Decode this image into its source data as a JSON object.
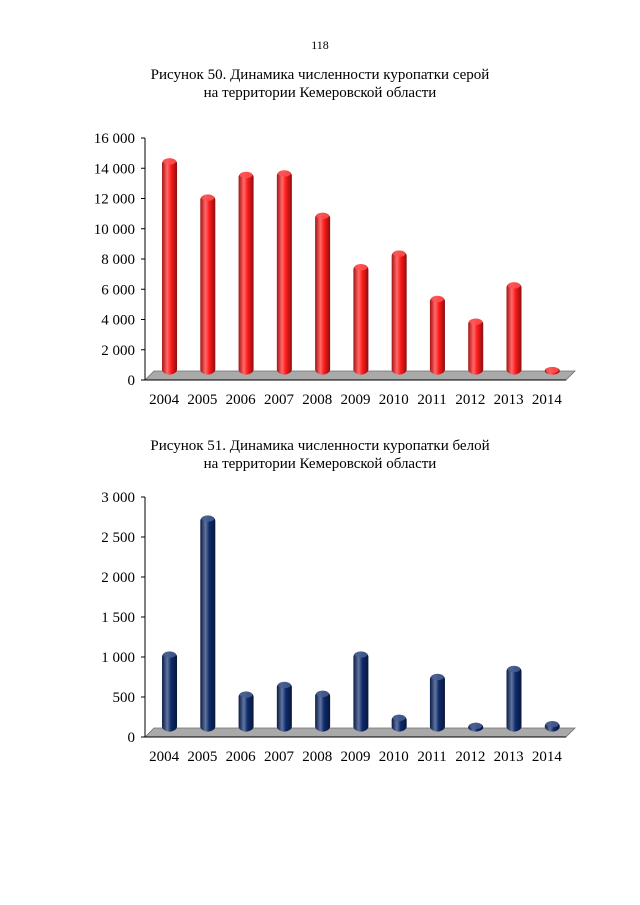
{
  "page_number": "118",
  "figures": [
    {
      "caption_line1": "Рисунок 50. Динамика численности куропатки серой",
      "caption_line2": "на территории Кемеровской области"
    },
    {
      "caption_line1": "Рисунок 51. Динамика численности куропатки белой",
      "caption_line2": "на территории Кемеровской области"
    }
  ],
  "chart_data": [
    {
      "type": "bar",
      "title": "Рисунок 50. Динамика численности куропатки серой на территории Кемеровской области",
      "categories": [
        "2004",
        "2005",
        "2006",
        "2007",
        "2008",
        "2009",
        "2010",
        "2011",
        "2012",
        "2013",
        "2014"
      ],
      "values": [
        14300,
        11900,
        13400,
        13500,
        10700,
        7300,
        8200,
        5200,
        3700,
        6100,
        500
      ],
      "ylim": [
        0,
        16000
      ],
      "yticks": [
        0,
        2000,
        4000,
        6000,
        8000,
        10000,
        12000,
        14000,
        16000
      ],
      "ytick_labels": [
        "0",
        "2 000",
        "4 000",
        "6 000",
        "8 000",
        "10 000",
        "12 000",
        "14 000",
        "16 000"
      ],
      "bar_color": "#ff1a1a",
      "floor_color": "#a9a9a9",
      "grid": false,
      "xlabel": "",
      "ylabel": ""
    },
    {
      "type": "bar",
      "title": "Рисунок 51. Динамика численности куропатки белой на территории Кемеровской области",
      "categories": [
        "2004",
        "2005",
        "2006",
        "2007",
        "2008",
        "2009",
        "2010",
        "2011",
        "2012",
        "2013",
        "2014"
      ],
      "values": [
        1000,
        2700,
        500,
        620,
        510,
        1000,
        210,
        720,
        110,
        820,
        130
      ],
      "ylim": [
        0,
        3000
      ],
      "yticks": [
        0,
        500,
        1000,
        1500,
        2000,
        2500,
        3000
      ],
      "ytick_labels": [
        "0",
        "500",
        "1 000",
        "1 500",
        "2 000",
        "2 500",
        "3 000"
      ],
      "bar_color": "#0d2a6b",
      "floor_color": "#a9a9a9",
      "grid": false,
      "xlabel": "",
      "ylabel": ""
    }
  ]
}
